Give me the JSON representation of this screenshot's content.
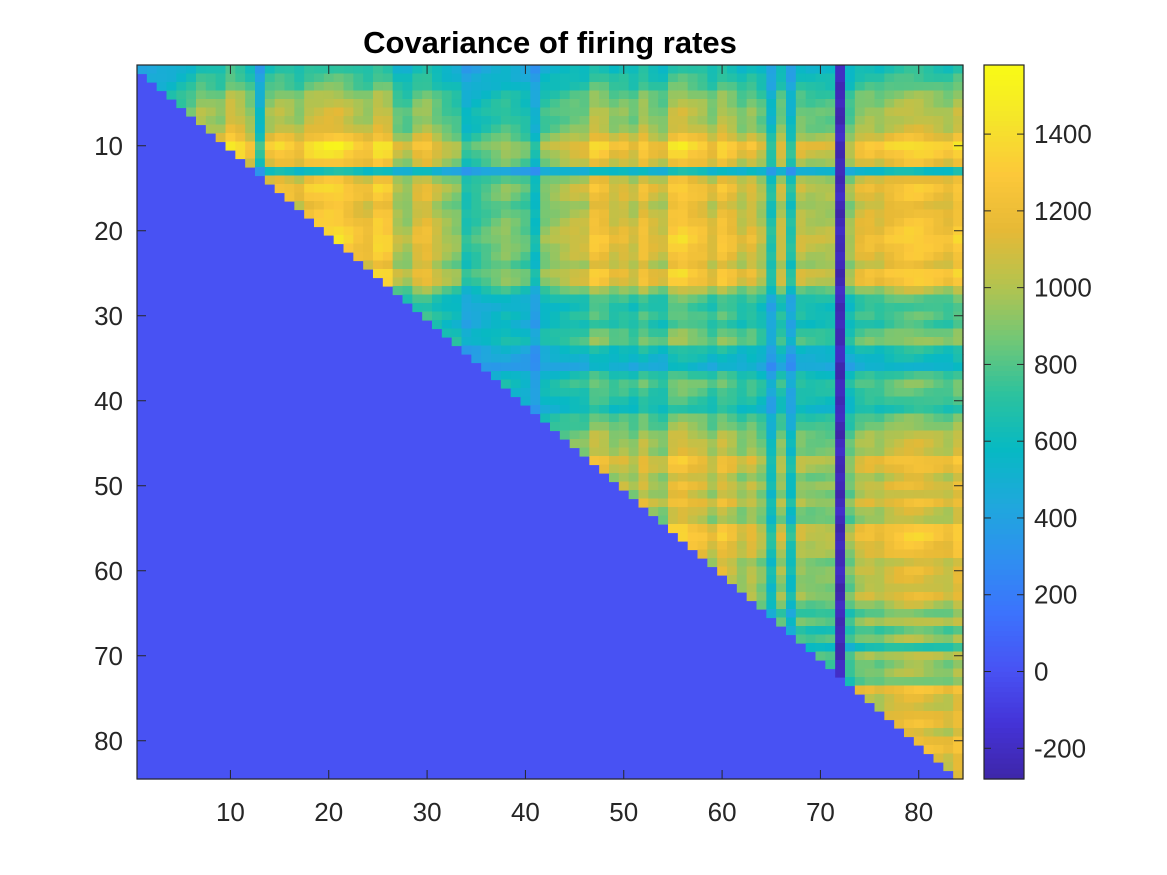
{
  "chart_data": {
    "type": "heatmap",
    "title": "Covariance of firing rates",
    "n": 84,
    "xlim": [
      0.5,
      84.5
    ],
    "ylim": [
      0.5,
      84.5
    ],
    "y_direction": "reverse",
    "x_ticks": [
      10,
      20,
      30,
      40,
      50,
      60,
      70,
      80
    ],
    "y_ticks": [
      10,
      20,
      30,
      40,
      50,
      60,
      70,
      80
    ],
    "lower_triangle_value": 0,
    "colorbar": {
      "range": [
        -280,
        1580
      ],
      "ticks": [
        -200,
        0,
        200,
        400,
        600,
        800,
        1000,
        1200,
        1400
      ],
      "colormap": [
        "#3e26a8",
        "#4433d7",
        "#4853f4",
        "#3c72fd",
        "#2f8ff0",
        "#1fa8dc",
        "#07b9c3",
        "#2cc29e",
        "#72c776",
        "#b5c34e",
        "#e6b936",
        "#fcc83a",
        "#f5e52a",
        "#f9fb15"
      ]
    },
    "estimated_row_strength": [
      0.25,
      0.3,
      0.35,
      0.45,
      0.5,
      0.55,
      0.55,
      0.6,
      0.75,
      1.0,
      0.9,
      0.75,
      0.2,
      0.7,
      0.85,
      0.8,
      0.7,
      0.75,
      0.8,
      0.85,
      0.9,
      0.85,
      0.8,
      0.7,
      0.9,
      0.85,
      0.55,
      0.35,
      0.3,
      0.35,
      0.3,
      0.4,
      0.45,
      0.25,
      0.2,
      0.15,
      0.3,
      0.4,
      0.35,
      0.3,
      0.25,
      0.4,
      0.45,
      0.55,
      0.6,
      0.6,
      0.8,
      0.75,
      0.6,
      0.7,
      0.6,
      0.75,
      0.6,
      0.55,
      0.85,
      0.9,
      0.8,
      0.75,
      0.6,
      0.7,
      0.65,
      0.6,
      0.7,
      0.55,
      0.4,
      0.55,
      0.35,
      0.5,
      0.25,
      0.55,
      0.45,
      0.5,
      0.4,
      0.8,
      0.65,
      0.6,
      0.7,
      0.75,
      0.6,
      0.75,
      0.8,
      0.7,
      0.65,
      0.6
    ],
    "estimated_col_strength": [
      0.3,
      0.3,
      0.35,
      0.4,
      0.5,
      0.6,
      0.8,
      0.75,
      0.7,
      1.0,
      0.9,
      0.7,
      0.25,
      0.75,
      0.85,
      0.8,
      0.7,
      0.9,
      0.95,
      1.0,
      1.0,
      0.9,
      0.8,
      0.75,
      0.95,
      0.9,
      0.55,
      0.5,
      0.7,
      0.75,
      0.6,
      0.5,
      0.45,
      0.25,
      0.3,
      0.35,
      0.4,
      0.45,
      0.4,
      0.35,
      0.2,
      0.45,
      0.5,
      0.55,
      0.6,
      0.6,
      0.85,
      0.8,
      0.65,
      0.7,
      0.6,
      0.8,
      0.65,
      0.6,
      0.9,
      0.95,
      0.85,
      0.8,
      0.65,
      0.85,
      0.75,
      0.6,
      0.7,
      0.55,
      0.25,
      0.6,
      0.25,
      0.6,
      0.55,
      0.55,
      0.55,
      0.0,
      0.5,
      0.7,
      0.75,
      0.7,
      0.8,
      0.85,
      0.9,
      0.9,
      0.85,
      0.8,
      0.75,
      0.9
    ],
    "estimated_peak_value": 1500
  }
}
